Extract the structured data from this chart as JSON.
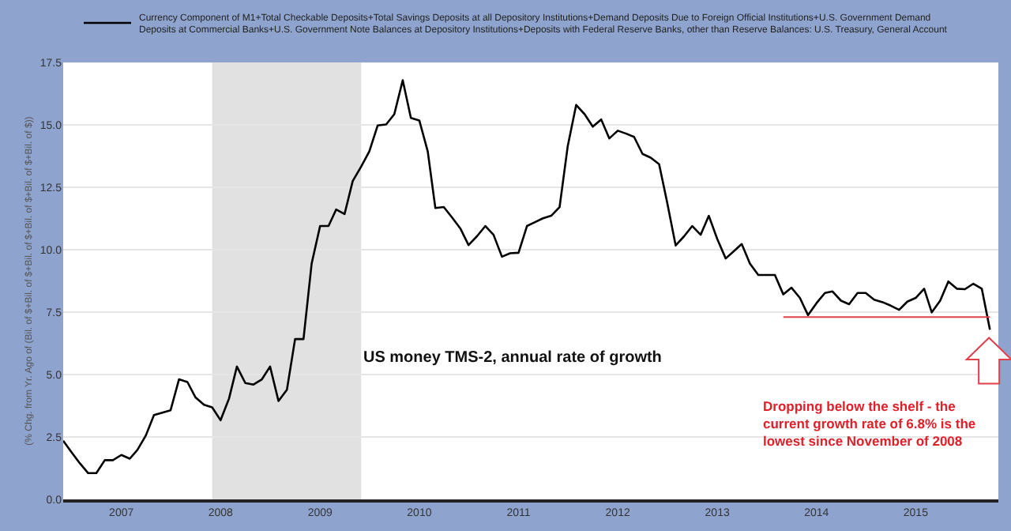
{
  "chart_data": {
    "type": "line",
    "ylabel": "(% Chg. from Yr. Ago of (Bil. of $+Bil. of $+Bil. of $+Bil. of $+Bil. of $+Bil. of $))",
    "xlim": [
      "2006-06",
      "2015-11"
    ],
    "xticks": [
      "2007",
      "2008",
      "2009",
      "2010",
      "2011",
      "2012",
      "2013",
      "2014",
      "2015"
    ],
    "ylim": [
      0,
      17.5
    ],
    "yticks": [
      {
        "value": 0,
        "label": "0.0"
      },
      {
        "value": 2.5,
        "label": "2.5"
      },
      {
        "value": 5,
        "label": "5.0"
      },
      {
        "value": 7.5,
        "label": "7.5"
      },
      {
        "value": 10,
        "label": "10.0"
      },
      {
        "value": 12.5,
        "label": "12.5"
      },
      {
        "value": 15,
        "label": "15.0"
      },
      {
        "value": 17.5,
        "label": "17.5"
      }
    ],
    "grid": "y",
    "legend": "top",
    "series": [
      {
        "name": "Currency Component of M1+Total Checkable Deposits+Total Savings Deposits at all Depository Institutions+Demand Deposits Due to Foreign Official Institutions+U.S. Government Demand Deposits at Commercial Banks+U.S. Government Note Balances at Depository Institutions+Deposits with Federal Reserve Banks, other than Reserve Balances: U.S. Treasury, General Account",
        "color": "#000000",
        "x": [
          "2006-06",
          "2006-07",
          "2006-08",
          "2006-09",
          "2006-10",
          "2006-11",
          "2006-12",
          "2007-01",
          "2007-02",
          "2007-03",
          "2007-04",
          "2007-05",
          "2007-07",
          "2007-08",
          "2007-09",
          "2007-10",
          "2007-11",
          "2007-12",
          "2008-01",
          "2008-02",
          "2008-03",
          "2008-04",
          "2008-05",
          "2008-06",
          "2008-07",
          "2008-08",
          "2008-09",
          "2008-10",
          "2008-11",
          "2008-12",
          "2009-01",
          "2009-02",
          "2009-03",
          "2009-04",
          "2009-05",
          "2009-06",
          "2009-07",
          "2009-08",
          "2009-09",
          "2009-10",
          "2009-11",
          "2009-12",
          "2010-01",
          "2010-02",
          "2010-03",
          "2010-04",
          "2010-05",
          "2010-06",
          "2010-07",
          "2010-08",
          "2010-09",
          "2010-10",
          "2010-11",
          "2010-12",
          "2011-01",
          "2011-02",
          "2011-03",
          "2011-04",
          "2011-05",
          "2011-06",
          "2011-07",
          "2011-08",
          "2011-09",
          "2011-10",
          "2011-11",
          "2011-12",
          "2012-01",
          "2012-02",
          "2012-03",
          "2012-04",
          "2012-05",
          "2012-06",
          "2012-07",
          "2012-08",
          "2012-09",
          "2012-10",
          "2012-11",
          "2012-12",
          "2013-01",
          "2013-02",
          "2013-03",
          "2013-04",
          "2013-05",
          "2013-06",
          "2013-07",
          "2013-08",
          "2013-09",
          "2013-10",
          "2013-11",
          "2013-12",
          "2014-01",
          "2014-02",
          "2014-03",
          "2014-04",
          "2014-05",
          "2014-06",
          "2014-07",
          "2014-08",
          "2014-09",
          "2014-10",
          "2014-11",
          "2014-12",
          "2015-01",
          "2015-02",
          "2015-03",
          "2015-04",
          "2015-05",
          "2015-06",
          "2015-07",
          "2015-08",
          "2015-09",
          "2015-10"
        ],
        "values": [
          2.35,
          1.9,
          1.45,
          1.05,
          1.05,
          1.57,
          1.57,
          1.78,
          1.63,
          1.98,
          2.56,
          3.38,
          3.57,
          4.81,
          4.7,
          4.08,
          3.79,
          3.69,
          3.17,
          4.04,
          5.32,
          4.66,
          4.6,
          4.81,
          5.32,
          3.94,
          4.39,
          6.42,
          6.42,
          9.45,
          10.95,
          10.95,
          11.61,
          11.43,
          12.75,
          13.33,
          13.94,
          14.98,
          15.02,
          15.43,
          16.79,
          15.28,
          15.18,
          13.94,
          11.67,
          11.71,
          11.3,
          10.85,
          10.19,
          10.54,
          10.95,
          10.6,
          9.72,
          9.86,
          9.88,
          10.95,
          11.1,
          11.26,
          11.36,
          11.71,
          14.15,
          15.8,
          15.43,
          14.93,
          15.22,
          14.46,
          14.77,
          14.65,
          14.52,
          13.84,
          13.69,
          13.43,
          11.88,
          10.17,
          10.54,
          10.95,
          10.6,
          11.36,
          10.43,
          9.65,
          9.92,
          10.23,
          9.45,
          8.99,
          8.99,
          8.99,
          8.21,
          8.48,
          8.07,
          7.38,
          7.86,
          8.27,
          8.33,
          7.96,
          7.82,
          8.27,
          8.27,
          8.0,
          7.9,
          7.76,
          7.59,
          7.92,
          8.07,
          8.44,
          7.49,
          7.96,
          8.73,
          8.44,
          8.42,
          8.64,
          8.44,
          6.8
        ]
      },
      {
        "color": "#e0404a",
        "x": [
          "2013-09",
          "2015-10"
        ],
        "values": [
          7.3,
          7.3
        ]
      }
    ],
    "bands": [
      {
        "axis": "x",
        "from": "2007-12",
        "to": "2009-06",
        "color": "#e1e1e1"
      }
    ],
    "annotations": [
      "US money TMS-2, annual rate of growth",
      "Dropping below the shelf - the current growth rate of 6.8% is the lowest since November of 2008"
    ]
  }
}
